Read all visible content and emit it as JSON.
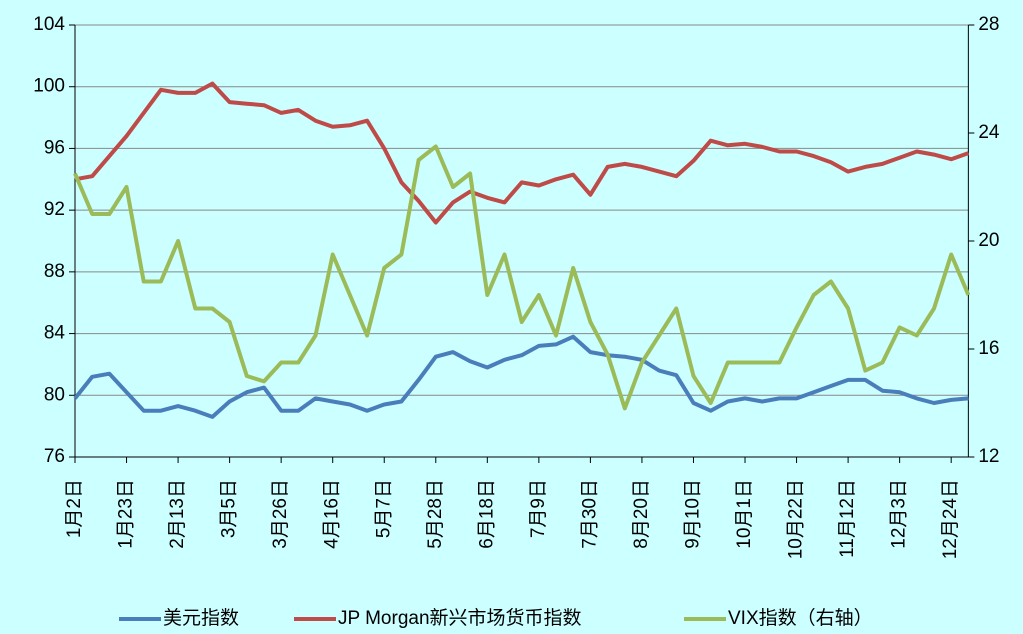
{
  "chart_data": {
    "type": "line",
    "categories": [
      "1月2日",
      null,
      null,
      "1月23日",
      null,
      null,
      "2月13日",
      null,
      null,
      "3月5日",
      null,
      null,
      "3月26日",
      null,
      null,
      "4月16日",
      null,
      null,
      "5月7日",
      null,
      null,
      "5月28日",
      null,
      null,
      "6月18日",
      null,
      null,
      "7月9日",
      null,
      null,
      "7月30日",
      null,
      null,
      "8月20日",
      null,
      null,
      "9月10日",
      null,
      null,
      "10月1日",
      null,
      null,
      "10月22日",
      null,
      null,
      "11月12日",
      null,
      null,
      "12月3日",
      null,
      null,
      "12月24日",
      null
    ],
    "ylim": [
      76,
      104
    ],
    "yticks": [
      76,
      80,
      84,
      88,
      92,
      96,
      100,
      104
    ],
    "y2lim": [
      12,
      28
    ],
    "y2ticks": [
      12,
      16,
      20,
      24,
      28
    ],
    "grid": true,
    "legend": "bottom",
    "series": [
      {
        "name": "美元指数",
        "color": "#4a7ebb",
        "values": [
          79.8,
          81.2,
          81.4,
          80.2,
          79.0,
          79.0,
          79.3,
          79.0,
          78.6,
          79.6,
          80.2,
          80.5,
          79.0,
          79.0,
          79.8,
          79.6,
          79.4,
          79.0,
          79.4,
          79.6,
          81.0,
          82.5,
          82.8,
          82.2,
          81.8,
          82.3,
          82.6,
          83.2,
          83.3,
          83.8,
          82.8,
          82.6,
          82.5,
          82.3,
          81.6,
          81.3,
          79.5,
          79.0,
          79.6,
          79.8,
          79.6,
          79.8,
          79.8,
          80.2,
          80.6,
          81.0,
          81.0,
          80.3,
          80.2,
          79.8,
          79.5,
          79.7,
          79.8
        ]
      },
      {
        "name": "JP Morgan新兴市场货币指数",
        "color": "#be4b48",
        "values": [
          94.0,
          94.2,
          95.5,
          96.8,
          98.3,
          99.8,
          99.6,
          99.6,
          100.2,
          99.0,
          98.9,
          98.8,
          98.3,
          98.5,
          97.8,
          97.4,
          97.5,
          97.8,
          96.0,
          93.8,
          92.6,
          91.2,
          92.5,
          93.2,
          92.8,
          92.5,
          93.8,
          93.6,
          94.0,
          94.3,
          93.0,
          94.8,
          95.0,
          94.8,
          94.5,
          94.2,
          95.2,
          96.5,
          96.2,
          96.3,
          96.1,
          95.8,
          95.8,
          95.5,
          95.1,
          94.5,
          94.8,
          95.0,
          95.4,
          95.8,
          95.6,
          95.3,
          95.7
        ]
      },
      {
        "name": "VIX指数（右轴）",
        "color": "#9bbb59",
        "axis": "y2",
        "values": [
          22.5,
          21.0,
          21.0,
          22.0,
          18.5,
          18.5,
          20.0,
          17.5,
          17.5,
          17.0,
          15.0,
          14.8,
          15.5,
          15.5,
          16.5,
          19.5,
          18.0,
          16.5,
          19.0,
          19.5,
          23.0,
          23.5,
          22.0,
          22.5,
          18.0,
          19.5,
          17.0,
          18.0,
          16.5,
          19.0,
          17.0,
          15.8,
          13.8,
          15.5,
          16.5,
          17.5,
          15.0,
          14.0,
          15.5,
          15.5,
          15.5,
          15.5,
          16.8,
          18.0,
          18.5,
          17.5,
          15.2,
          15.5,
          16.8,
          16.5,
          17.5,
          19.5,
          18.0
        ]
      }
    ]
  }
}
